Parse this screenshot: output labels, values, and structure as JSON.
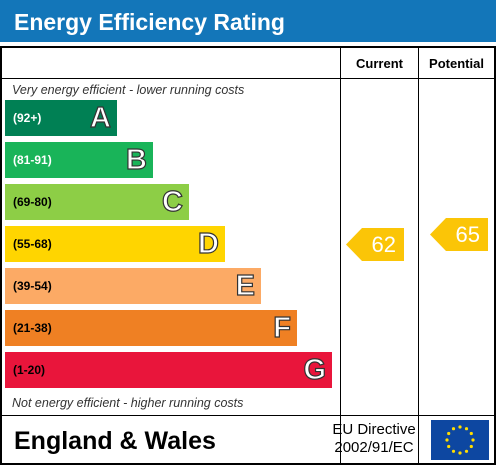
{
  "header": {
    "title": "Energy Efficiency Rating"
  },
  "columns": {
    "current": "Current",
    "potential": "Potential"
  },
  "notes": {
    "top": "Very energy efficient - lower running costs",
    "bottom": "Not energy efficient - higher running costs"
  },
  "chart_data": {
    "type": "bar",
    "title": "Energy Efficiency Rating",
    "categories": [
      "A",
      "B",
      "C",
      "D",
      "E",
      "F",
      "G"
    ],
    "bands": [
      {
        "letter": "A",
        "range": "(92+)",
        "color": "#008054",
        "text_color": "#ffffff"
      },
      {
        "letter": "B",
        "range": "(81-91)",
        "color": "#19b459",
        "text_color": "#ffffff"
      },
      {
        "letter": "C",
        "range": "(69-80)",
        "color": "#8dce46",
        "text_color": "#000000"
      },
      {
        "letter": "D",
        "range": "(55-68)",
        "color": "#ffd500",
        "text_color": "#000000"
      },
      {
        "letter": "E",
        "range": "(39-54)",
        "color": "#fcaa65",
        "text_color": "#000000"
      },
      {
        "letter": "F",
        "range": "(21-38)",
        "color": "#ef8023",
        "text_color": "#000000"
      },
      {
        "letter": "G",
        "range": "(1-20)",
        "color": "#e9153b",
        "text_color": "#000000"
      }
    ],
    "current": {
      "label": "Current",
      "value": 62,
      "band": "D",
      "color": "#fbc507"
    },
    "potential": {
      "label": "Potential",
      "value": 65,
      "band": "D",
      "color": "#fbc507"
    }
  },
  "footer": {
    "region": "England & Wales",
    "directive_line1": "EU Directive",
    "directive_line2": "2002/91/EC",
    "flag_icon": "eu-flag-icon"
  }
}
